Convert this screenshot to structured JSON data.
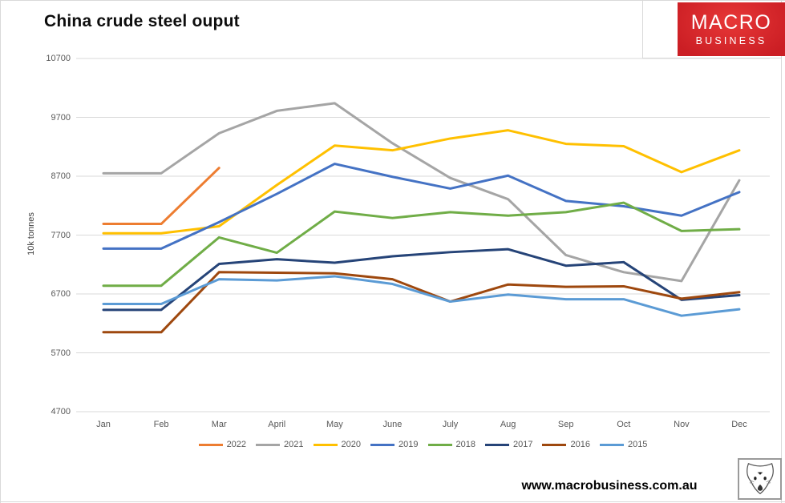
{
  "page": {
    "title": "China crude steel ouput"
  },
  "logo": {
    "line1": "MACRO",
    "line2": "BUSINESS",
    "bg_color": "#cb1e24"
  },
  "footer": {
    "url": "www.macrobusiness.com.au",
    "fox_icon": "fox-head-sketch"
  },
  "chart_data": {
    "type": "line",
    "title": "China crude steel ouput",
    "xlabel": "",
    "ylabel": "10k tonnes",
    "ylim": [
      4700,
      10700
    ],
    "yticks": [
      10700,
      9700,
      8700,
      7700,
      6700,
      5700,
      4700
    ],
    "grid": "horizontal",
    "legend_position": "bottom",
    "categories": [
      "Jan",
      "Feb",
      "Mar",
      "April",
      "May",
      "June",
      "July",
      "Aug",
      "Sep",
      "Oct",
      "Nov",
      "Dec"
    ],
    "series": [
      {
        "name": "2022",
        "color": "#ED7D31",
        "values": [
          7890,
          7890,
          8840,
          null,
          null,
          null,
          null,
          null,
          null,
          null,
          null,
          null
        ]
      },
      {
        "name": "2021",
        "color": "#A5A5A5",
        "values": [
          8750,
          8750,
          9430,
          9810,
          9940,
          9260,
          8670,
          8310,
          7360,
          7070,
          6920,
          8630
        ]
      },
      {
        "name": "2020",
        "color": "#FFC000",
        "values": [
          7730,
          7730,
          7850,
          8550,
          9220,
          9140,
          9340,
          9480,
          9250,
          9210,
          8770,
          9140
        ]
      },
      {
        "name": "2019",
        "color": "#4472C4",
        "values": [
          7470,
          7470,
          7920,
          8400,
          8910,
          8690,
          8490,
          8710,
          8280,
          8190,
          8030,
          8430
        ]
      },
      {
        "name": "2018",
        "color": "#70AD47",
        "values": [
          6840,
          6840,
          7660,
          7400,
          8100,
          7990,
          8090,
          8030,
          8090,
          8250,
          7770,
          7800
        ]
      },
      {
        "name": "2017",
        "color": "#264478",
        "values": [
          6430,
          6430,
          7210,
          7290,
          7230,
          7340,
          7410,
          7460,
          7180,
          7240,
          6600,
          6680
        ]
      },
      {
        "name": "2016",
        "color": "#9E480E",
        "values": [
          6050,
          6050,
          7070,
          7060,
          7050,
          6950,
          6570,
          6860,
          6820,
          6830,
          6620,
          6730
        ]
      },
      {
        "name": "2015",
        "color": "#5B9BD5",
        "values": [
          6530,
          6530,
          6950,
          6930,
          7000,
          6870,
          6570,
          6690,
          6610,
          6610,
          6330,
          6440
        ]
      }
    ]
  }
}
